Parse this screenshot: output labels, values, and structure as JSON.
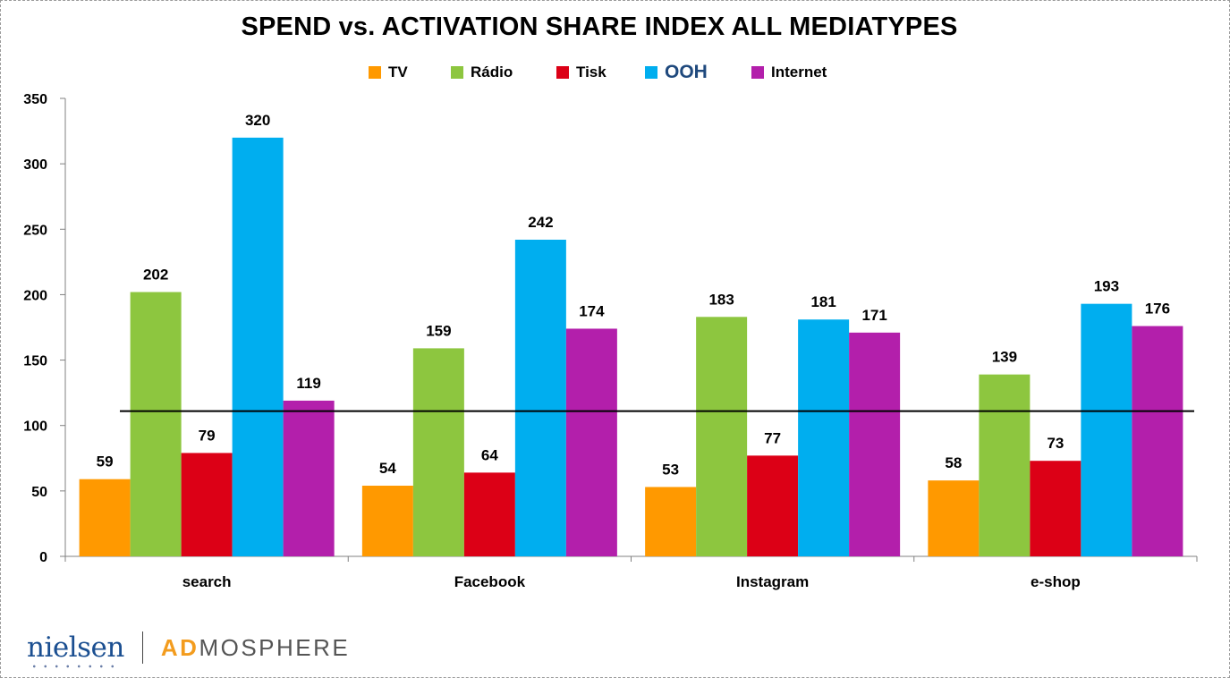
{
  "chart_data": {
    "type": "bar",
    "title": "SPEND vs. ACTIVATION SHARE INDEX ALL MEDIATYPES",
    "categories": [
      "search",
      "Facebook",
      "Instagram",
      "e-shop"
    ],
    "series": [
      {
        "name": "TV",
        "color": "#ff9900",
        "values": [
          59,
          54,
          53,
          58
        ]
      },
      {
        "name": "Rádio",
        "color": "#8dc63f",
        "values": [
          202,
          159,
          183,
          139
        ]
      },
      {
        "name": "Tisk",
        "color": "#dc0016",
        "values": [
          79,
          64,
          77,
          73
        ]
      },
      {
        "name": "OOH",
        "color": "#00aeef",
        "values": [
          320,
          242,
          181,
          193
        ]
      },
      {
        "name": "Internet",
        "color": "#b31fab",
        "values": [
          119,
          174,
          171,
          176
        ]
      }
    ],
    "ylim": [
      0,
      350
    ],
    "yticks": [
      0,
      50,
      100,
      150,
      200,
      250,
      300,
      350
    ],
    "reference_line": 111,
    "legend_position": "top",
    "grid": false
  },
  "logos": {
    "nielsen": "nielsen",
    "admosphere_ad": "AD",
    "admosphere_rest": "MOSPHERE"
  }
}
